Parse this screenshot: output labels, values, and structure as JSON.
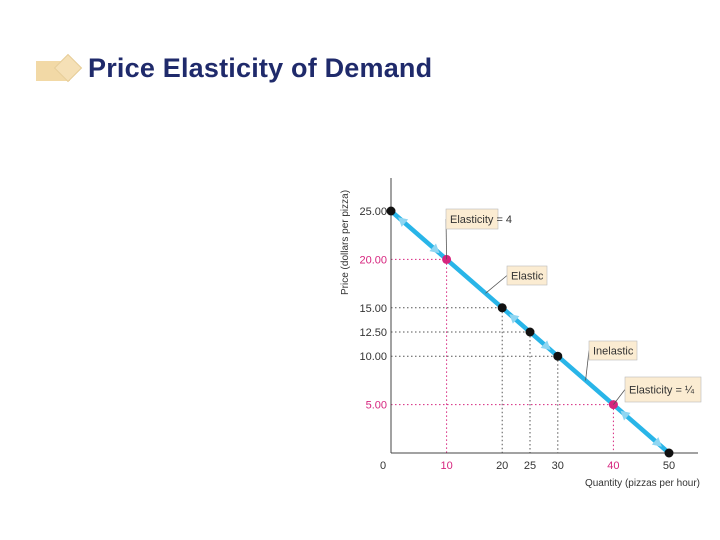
{
  "slide": {
    "title": "Price Elasticity of Demand"
  },
  "colors": {
    "title": "#1f2a6b",
    "demand_line": "#29b5e8",
    "highlight_point": "#d6247e",
    "point": "#111111",
    "annotation_fill": "#fbecd2",
    "guide_black": "#555555",
    "guide_pink": "#d6247e"
  },
  "chart_data": {
    "type": "line",
    "title": "",
    "xlabel": "Quantity (pizzas per hour)",
    "ylabel": "Price (dollars per pizza)",
    "xlim": [
      0,
      50
    ],
    "ylim": [
      0,
      25
    ],
    "grid": false,
    "series": [
      {
        "x": [
          0,
          50
        ],
        "y": [
          25,
          0
        ]
      }
    ],
    "points": [
      {
        "x": 0,
        "y": 25.0,
        "highlight": false
      },
      {
        "x": 10,
        "y": 20.0,
        "highlight": true
      },
      {
        "x": 20,
        "y": 15.0,
        "highlight": false
      },
      {
        "x": 25,
        "y": 12.5,
        "highlight": false
      },
      {
        "x": 30,
        "y": 10.0,
        "highlight": false
      },
      {
        "x": 40,
        "y": 5.0,
        "highlight": true
      },
      {
        "x": 50,
        "y": 0.0,
        "highlight": false
      }
    ],
    "x_ticks": [
      {
        "value": 0,
        "label": "0",
        "highlight": false
      },
      {
        "value": 10,
        "label": "10",
        "highlight": true
      },
      {
        "value": 20,
        "label": "20",
        "highlight": false
      },
      {
        "value": 25,
        "label": "25",
        "highlight": false
      },
      {
        "value": 30,
        "label": "30",
        "highlight": false
      },
      {
        "value": 40,
        "label": "40",
        "highlight": true
      },
      {
        "value": 50,
        "label": "50",
        "highlight": false
      }
    ],
    "y_ticks": [
      {
        "value": 25,
        "label": "25.00",
        "highlight": false
      },
      {
        "value": 20,
        "label": "20.00",
        "highlight": true
      },
      {
        "value": 15,
        "label": "15.00",
        "highlight": false
      },
      {
        "value": 12.5,
        "label": "12.50",
        "highlight": false
      },
      {
        "value": 10,
        "label": "10.00",
        "highlight": false
      },
      {
        "value": 5,
        "label": "5.00",
        "highlight": true
      }
    ],
    "annotations": [
      {
        "label": "Elasticity = 4",
        "point_x": 10,
        "point_y": 20
      },
      {
        "label": "Elastic",
        "point_x": 17,
        "point_y": 16.5
      },
      {
        "label": "Inelastic",
        "point_x": 35,
        "point_y": 7.5
      },
      {
        "label": "Elasticity = ¼",
        "point_x": 40,
        "point_y": 5
      }
    ]
  }
}
